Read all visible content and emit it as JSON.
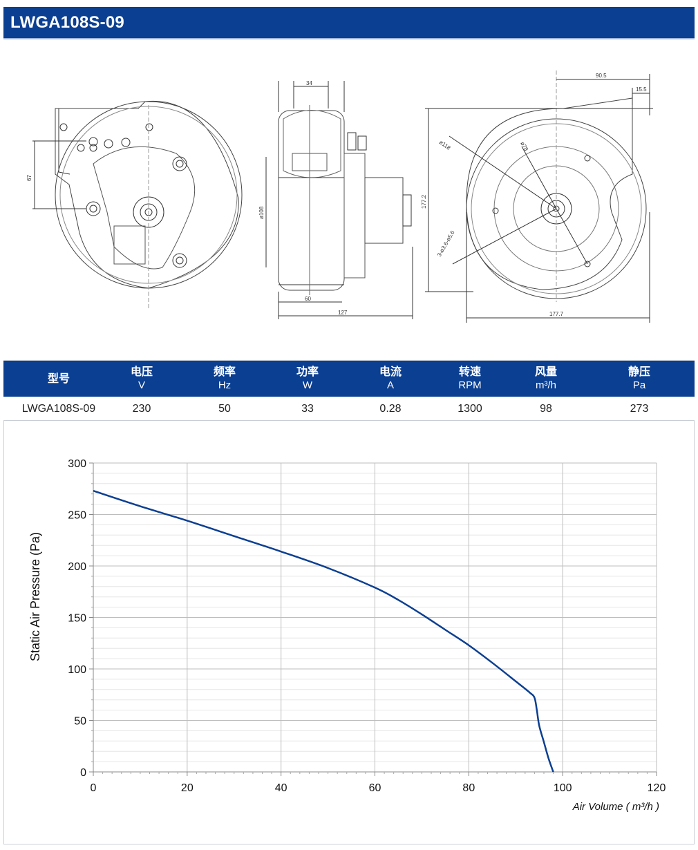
{
  "title": "LWGA108S-09",
  "drawing": {
    "dims": {
      "d34": "34",
      "d67": "67",
      "d108": "ø108",
      "d60": "60",
      "d127": "127",
      "d90_5": "90.5",
      "d15_5": "15.5",
      "d118": "ø118",
      "d78": "ø78",
      "d177_2": "177.2",
      "d177_7": "177.7",
      "holes": "3-ø3.6-ø5.6"
    }
  },
  "spec_table": {
    "columns": [
      {
        "label": "型号",
        "unit": ""
      },
      {
        "label": "电压",
        "unit": "V"
      },
      {
        "label": "频率",
        "unit": "Hz"
      },
      {
        "label": "功率",
        "unit": "W"
      },
      {
        "label": "电流",
        "unit": "A"
      },
      {
        "label": "转速",
        "unit": "RPM"
      },
      {
        "label": "风量",
        "unit": "m³/h"
      },
      {
        "label": "静压",
        "unit": "Pa"
      }
    ],
    "row": [
      "LWGA108S-09",
      "230",
      "50",
      "33",
      "0.28",
      "1300",
      "98",
      "273"
    ]
  },
  "chart_data": {
    "type": "line",
    "xlabel": "Air Volume ( m³/h )",
    "ylabel": "Static Air Pressure  (Pa)",
    "xlim": [
      0,
      120
    ],
    "ylim": [
      0,
      300
    ],
    "xticks": [
      0,
      20,
      40,
      60,
      80,
      100,
      120
    ],
    "yticks": [
      0,
      50,
      100,
      150,
      200,
      250,
      300
    ],
    "grid": true,
    "color": "#0b3f91",
    "series": [
      {
        "x": [
          0,
          10,
          20,
          30,
          40,
          50,
          60,
          65,
          70,
          75,
          80,
          85,
          90,
          93,
          94,
          94.5,
          95,
          96,
          97,
          98
        ],
        "y": [
          273,
          258,
          244,
          229,
          214,
          198,
          179,
          167,
          153,
          138,
          123,
          106,
          88,
          77,
          72,
          60,
          45,
          29,
          13,
          0
        ]
      }
    ]
  }
}
